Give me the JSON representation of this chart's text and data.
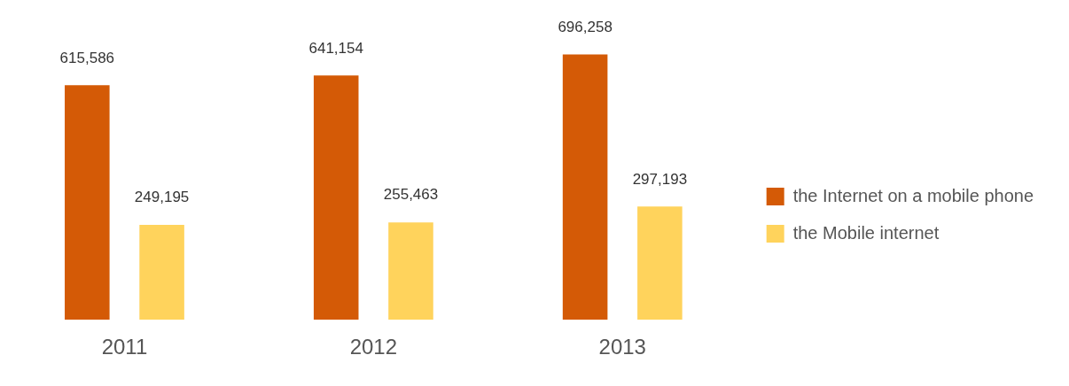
{
  "chart_data": {
    "type": "bar",
    "categories": [
      "2011",
      "2012",
      "2013"
    ],
    "series": [
      {
        "name": "the Internet on a mobile phone",
        "color": "#d45a06",
        "values": [
          615586,
          641154,
          696258
        ],
        "value_labels": [
          "615,586",
          "641,154",
          "696,258"
        ]
      },
      {
        "name": "the Mobile internet",
        "color": "#ffd35c",
        "values": [
          249195,
          255463,
          297193
        ],
        "value_labels": [
          "249,195",
          "255,463",
          "297,193"
        ]
      }
    ],
    "legend": "right",
    "grid": false,
    "tick_labels": "x"
  }
}
